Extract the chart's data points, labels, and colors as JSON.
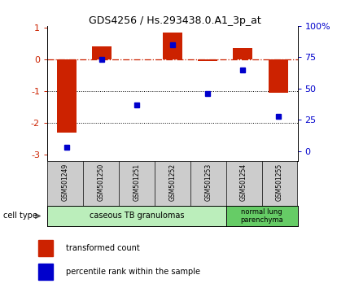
{
  "title": "GDS4256 / Hs.293438.0.A1_3p_at",
  "samples": [
    "GSM501249",
    "GSM501250",
    "GSM501251",
    "GSM501252",
    "GSM501253",
    "GSM501254",
    "GSM501255"
  ],
  "transformed_count": [
    -2.3,
    0.42,
    0.0,
    0.85,
    -0.05,
    0.35,
    -1.05
  ],
  "percentile_rank": [
    3,
    73,
    37,
    85,
    46,
    65,
    28
  ],
  "ylim_left": [
    -3.2,
    1.05
  ],
  "ylim_right": [
    -8,
    100
  ],
  "yticks_left": [
    -3,
    -2,
    -1,
    0,
    1
  ],
  "yticks_right": [
    0,
    25,
    50,
    75,
    100
  ],
  "ytick_labels_right": [
    "0",
    "25",
    "50",
    "75",
    "100%"
  ],
  "dotted_lines": [
    -1,
    -2
  ],
  "bar_color": "#cc2200",
  "scatter_color": "#0000cc",
  "cell_groups": [
    {
      "label": "caseous TB granulomas",
      "count": 5,
      "color": "#bbeebb"
    },
    {
      "label": "normal lung\nparenchyma",
      "count": 2,
      "color": "#66cc66"
    }
  ],
  "cell_type_label": "cell type",
  "legend_bar_label": "transformed count",
  "legend_scatter_label": "percentile rank within the sample",
  "bg_color": "#ffffff",
  "sample_box_color": "#cccccc",
  "title_fontsize": 9,
  "axis_fontsize": 8,
  "label_fontsize": 6,
  "legend_fontsize": 7
}
